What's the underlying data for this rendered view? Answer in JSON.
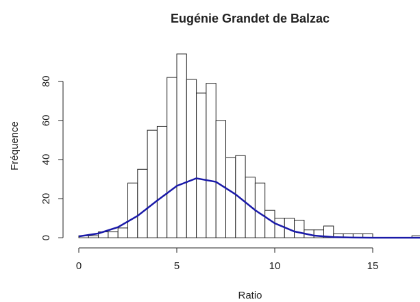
{
  "chart_data": {
    "type": "histogram",
    "title": "Eugénie Grandet de Balzac",
    "x_label": "Ratio",
    "y_label": "Fréquence",
    "bins": [
      0,
      0.5,
      1,
      1.5,
      2,
      2.5,
      3,
      3.5,
      4,
      4.5,
      5,
      5.5,
      6,
      6.5,
      7,
      7.5,
      8,
      8.5,
      9,
      9.5,
      10,
      10.5,
      11,
      11.5,
      12,
      12.5,
      13,
      13.5,
      14,
      14.5,
      15,
      15.5,
      16,
      16.5,
      17,
      17.5
    ],
    "values": [
      1,
      1,
      3,
      3,
      5,
      28,
      35,
      55,
      57,
      82,
      94,
      81,
      74,
      79,
      60,
      41,
      42,
      31,
      28,
      14,
      10,
      10,
      9,
      4,
      4,
      6,
      2,
      2,
      2,
      2,
      0,
      0,
      0,
      0,
      1
    ],
    "color": "#ffffff",
    "curve": {
      "color": "#1a1aa8",
      "x": [
        0,
        1,
        2,
        3,
        4,
        5,
        6,
        7,
        8,
        9,
        10,
        11,
        12,
        13,
        14,
        15,
        16,
        17,
        18
      ],
      "values": [
        0.7,
        2.2,
        5.4,
        11.2,
        19.0,
        26.5,
        30.4,
        28.6,
        22.2,
        14.1,
        7.4,
        3.2,
        1.1,
        0.3,
        0.1,
        0,
        0,
        0,
        0
      ]
    },
    "xlim": [
      -0.7,
      18.2
    ],
    "xticks": [
      0,
      5,
      10,
      15
    ],
    "ylim": [
      -3.8,
      97.8
    ],
    "yticks": [
      0,
      20,
      40,
      60,
      80
    ]
  }
}
